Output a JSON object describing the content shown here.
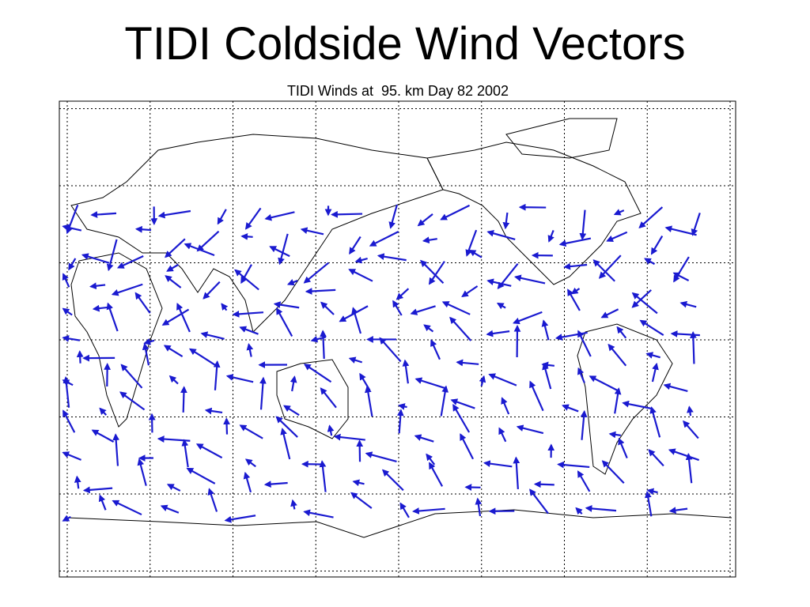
{
  "header": {
    "title": "TIDI Coldside Wind Vectors",
    "subtitle": "TIDI Winds at  95. km Day 82 2002"
  }
}
